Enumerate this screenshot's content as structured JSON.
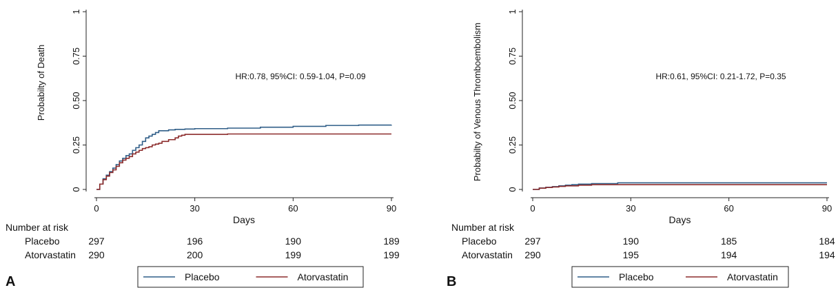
{
  "chart_data": [
    {
      "type": "line",
      "panel_label": "A",
      "ylabel": "Probabilty of Death",
      "xlabel": "Days",
      "xlim": [
        0,
        90
      ],
      "ylim": [
        0,
        1
      ],
      "x_ticks": [
        "0",
        "30",
        "60",
        "90"
      ],
      "y_ticks": [
        "0",
        "0.25",
        "0.50",
        "0.75",
        "1"
      ],
      "annotation": "HR:0.78, 95%CI: 0.59-1.04, P=0.09",
      "grid": false,
      "series": [
        {
          "name": "Placebo",
          "color": "#2f5d87",
          "x": [
            0,
            1,
            2,
            3,
            4,
            5,
            6,
            7,
            8,
            9,
            10,
            11,
            12,
            13,
            14,
            15,
            16,
            17,
            18,
            19,
            20,
            22,
            24,
            27,
            30,
            40,
            50,
            60,
            70,
            80,
            90
          ],
          "y": [
            0,
            0.03,
            0.06,
            0.08,
            0.1,
            0.12,
            0.14,
            0.16,
            0.175,
            0.19,
            0.2,
            0.22,
            0.235,
            0.25,
            0.27,
            0.29,
            0.3,
            0.31,
            0.32,
            0.33,
            0.33,
            0.335,
            0.338,
            0.34,
            0.342,
            0.345,
            0.35,
            0.355,
            0.36,
            0.362,
            0.363
          ]
        },
        {
          "name": "Atorvastatin",
          "color": "#8b2a2a",
          "x": [
            0,
            1,
            2,
            3,
            4,
            5,
            6,
            7,
            8,
            9,
            10,
            11,
            12,
            13,
            14,
            15,
            16,
            17,
            18,
            19,
            20,
            22,
            24,
            25,
            26,
            27,
            30,
            40,
            60,
            90
          ],
          "y": [
            0,
            0.03,
            0.055,
            0.075,
            0.095,
            0.11,
            0.13,
            0.15,
            0.165,
            0.175,
            0.185,
            0.2,
            0.21,
            0.22,
            0.23,
            0.235,
            0.24,
            0.25,
            0.255,
            0.26,
            0.27,
            0.28,
            0.29,
            0.3,
            0.305,
            0.31,
            0.31,
            0.312,
            0.312,
            0.312
          ]
        }
      ],
      "risk_table": {
        "title": "Number at risk",
        "rows": [
          {
            "label": "Placebo",
            "values": [
              "297",
              "196",
              "190",
              "189"
            ]
          },
          {
            "label": "Atorvastatin",
            "values": [
              "290",
              "200",
              "199",
              "199"
            ]
          }
        ]
      },
      "legend": {
        "placement": "bottom",
        "entries": [
          "Placebo",
          "Atorvastatin"
        ]
      }
    },
    {
      "type": "line",
      "panel_label": "B",
      "ylabel": "Probabilty of Venous Thromboembolism",
      "xlabel": "Days",
      "xlim": [
        0,
        90
      ],
      "ylim": [
        0,
        1
      ],
      "x_ticks": [
        "0",
        "30",
        "60",
        "90"
      ],
      "y_ticks": [
        "0",
        "0.25",
        "0.50",
        "0.75",
        "1"
      ],
      "annotation": "HR:0.61, 95%CI: 0.21-1.72, P=0.35",
      "grid": false,
      "series": [
        {
          "name": "Placebo",
          "color": "#2f5d87",
          "x": [
            0,
            2,
            4,
            6,
            8,
            10,
            12,
            14,
            18,
            26,
            90
          ],
          "y": [
            0,
            0.008,
            0.012,
            0.016,
            0.02,
            0.024,
            0.027,
            0.03,
            0.033,
            0.037,
            0.037
          ]
        },
        {
          "name": "Atorvastatin",
          "color": "#8b2a2a",
          "x": [
            0,
            2,
            4,
            6,
            8,
            10,
            14,
            18,
            90
          ],
          "y": [
            0,
            0.007,
            0.011,
            0.014,
            0.017,
            0.02,
            0.024,
            0.027,
            0.027
          ]
        }
      ],
      "risk_table": {
        "title": "Number at risk",
        "rows": [
          {
            "label": "Placebo",
            "values": [
              "297",
              "190",
              "185",
              "184"
            ]
          },
          {
            "label": "Atorvastatin",
            "values": [
              "290",
              "195",
              "194",
              "194"
            ]
          }
        ]
      },
      "legend": {
        "placement": "bottom",
        "entries": [
          "Placebo",
          "Atorvastatin"
        ]
      }
    }
  ]
}
